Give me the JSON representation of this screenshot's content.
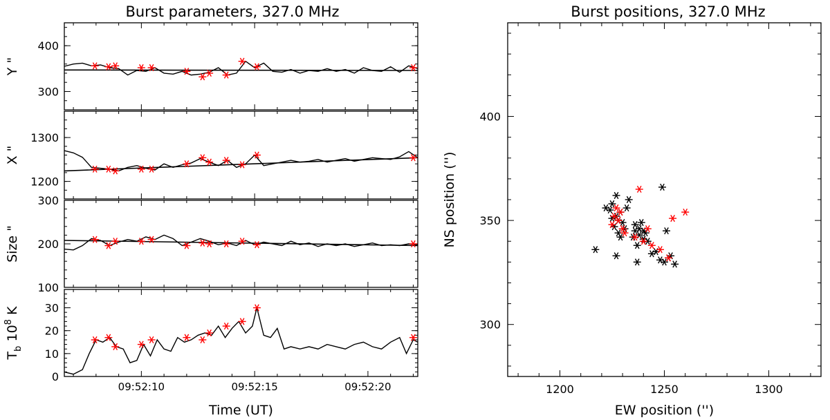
{
  "colors": {
    "axis": "#000000",
    "black_series": "#000000",
    "red_markers": "#ff0000"
  },
  "time_ticks": [
    "09:52:10",
    "09:52:15",
    "09:52:20"
  ],
  "chart_data": [
    {
      "type": "line",
      "panel": "Y",
      "title": "Burst parameters, 327.0 MHz",
      "ylabel": "Y \"",
      "xlabel": "",
      "xlim": [
        6.6,
        22.2
      ],
      "ylim": [
        260,
        450
      ],
      "yticks": [
        300,
        400
      ],
      "series": [
        {
          "role": "measured",
          "x": [
            6.6,
            7.0,
            7.4,
            7.8,
            8.2,
            8.6,
            9.0,
            9.4,
            9.8,
            10.2,
            10.6,
            11.0,
            11.4,
            11.8,
            12.2,
            12.6,
            13.0,
            13.4,
            13.8,
            14.2,
            14.6,
            15.0,
            15.4,
            15.8,
            16.2,
            16.6,
            17.0,
            17.4,
            17.8,
            18.2,
            18.6,
            19.0,
            19.4,
            19.8,
            20.2,
            20.6,
            21.0,
            21.4,
            21.8,
            22.2
          ],
          "y": [
            355,
            360,
            362,
            356,
            358,
            352,
            350,
            336,
            346,
            344,
            352,
            340,
            338,
            344,
            336,
            338,
            342,
            352,
            336,
            340,
            366,
            352,
            362,
            344,
            342,
            348,
            340,
            346,
            344,
            350,
            344,
            348,
            340,
            352,
            346,
            344,
            354,
            342,
            356,
            350
          ]
        },
        {
          "role": "fit",
          "x": [
            6.6,
            22.2
          ],
          "y": [
            347,
            346
          ]
        }
      ],
      "red_points": {
        "x": [
          7.95,
          8.55,
          8.85,
          10.0,
          10.45,
          12.0,
          12.7,
          13.0,
          13.75,
          14.45,
          15.1,
          22.0
        ],
        "y": [
          356,
          354,
          356,
          352,
          352,
          344,
          332,
          340,
          336,
          366,
          354,
          352
        ]
      }
    },
    {
      "type": "line",
      "panel": "X",
      "ylabel": "X \"",
      "xlim": [
        6.6,
        22.2
      ],
      "ylim": [
        1160,
        1360
      ],
      "yticks": [
        1200,
        1300
      ],
      "series": [
        {
          "role": "measured",
          "x": [
            6.6,
            7.0,
            7.4,
            7.8,
            8.2,
            8.6,
            9.0,
            9.4,
            9.8,
            10.2,
            10.6,
            11.0,
            11.4,
            11.8,
            12.2,
            12.6,
            13.0,
            13.4,
            13.8,
            14.2,
            14.6,
            15.0,
            15.4,
            15.8,
            16.2,
            16.6,
            17.0,
            17.4,
            17.8,
            18.2,
            18.6,
            19.0,
            19.4,
            19.8,
            20.2,
            20.6,
            21.0,
            21.4,
            21.8,
            22.2
          ],
          "y": [
            1270,
            1265,
            1255,
            1232,
            1230,
            1228,
            1224,
            1232,
            1236,
            1230,
            1226,
            1240,
            1232,
            1238,
            1242,
            1252,
            1244,
            1236,
            1248,
            1232,
            1240,
            1260,
            1236,
            1240,
            1244,
            1248,
            1244,
            1246,
            1250,
            1244,
            1248,
            1252,
            1246,
            1250,
            1254,
            1252,
            1250,
            1256,
            1268,
            1254
          ]
        },
        {
          "role": "fit",
          "x": [
            6.6,
            22.2
          ],
          "y": [
            1224,
            1254
          ]
        }
      ],
      "red_points": {
        "x": [
          7.95,
          8.55,
          8.85,
          10.0,
          10.45,
          12.0,
          12.7,
          13.0,
          13.75,
          14.45,
          15.1,
          22.0
        ],
        "y": [
          1228,
          1228,
          1224,
          1228,
          1228,
          1240,
          1254,
          1244,
          1248,
          1238,
          1260,
          1254
        ]
      }
    },
    {
      "type": "line",
      "panel": "Size",
      "ylabel": "Size \"",
      "xlim": [
        6.6,
        22.2
      ],
      "ylim": [
        100,
        300
      ],
      "yticks": [
        100,
        200,
        300
      ],
      "series": [
        {
          "role": "measured",
          "x": [
            6.6,
            7.0,
            7.4,
            7.8,
            8.2,
            8.6,
            9.0,
            9.4,
            9.8,
            10.2,
            10.6,
            11.0,
            11.4,
            11.8,
            12.2,
            12.6,
            13.0,
            13.4,
            13.8,
            14.2,
            14.6,
            15.0,
            15.4,
            15.8,
            16.2,
            16.6,
            17.0,
            17.4,
            17.8,
            18.2,
            18.6,
            19.0,
            19.4,
            19.8,
            20.2,
            20.6,
            21.0,
            21.4,
            21.8,
            22.2
          ],
          "y": [
            188,
            186,
            196,
            212,
            208,
            196,
            204,
            210,
            206,
            216,
            210,
            220,
            212,
            196,
            204,
            212,
            206,
            198,
            202,
            196,
            208,
            198,
            204,
            200,
            196,
            206,
            198,
            202,
            194,
            200,
            196,
            200,
            194,
            198,
            202,
            196,
            198,
            196,
            200,
            198
          ]
        },
        {
          "role": "fit",
          "x": [
            6.6,
            22.2
          ],
          "y": [
            208,
            196
          ]
        }
      ],
      "red_points": {
        "x": [
          7.95,
          8.55,
          8.85,
          10.0,
          10.45,
          12.0,
          12.7,
          13.0,
          13.75,
          14.45,
          15.1,
          22.0
        ],
        "y": [
          210,
          196,
          206,
          206,
          210,
          196,
          202,
          200,
          200,
          206,
          198,
          200
        ]
      }
    },
    {
      "type": "line",
      "panel": "Tb",
      "ylabel": "T_b 10^8 K",
      "xlabel": "Time (UT)",
      "xlim": [
        6.6,
        22.2
      ],
      "ylim": [
        0,
        38
      ],
      "yticks": [
        0,
        10,
        20,
        30
      ],
      "series": [
        {
          "role": "measured",
          "x": [
            6.6,
            7.0,
            7.4,
            7.7,
            8.0,
            8.3,
            8.6,
            8.9,
            9.2,
            9.5,
            9.8,
            10.1,
            10.4,
            10.7,
            11.0,
            11.3,
            11.6,
            11.9,
            12.2,
            12.5,
            12.8,
            13.1,
            13.4,
            13.7,
            14.0,
            14.3,
            14.6,
            14.9,
            15.1,
            15.4,
            15.7,
            16.0,
            16.3,
            16.6,
            17.0,
            17.4,
            17.8,
            18.2,
            18.6,
            19.0,
            19.4,
            19.8,
            20.2,
            20.6,
            21.0,
            21.4,
            21.7,
            22.0,
            22.2
          ],
          "y": [
            2,
            1,
            3,
            10,
            16,
            15,
            17,
            13,
            12,
            6,
            7,
            14,
            9,
            16,
            12,
            11,
            17,
            15,
            16,
            18,
            19,
            18,
            22,
            17,
            21,
            24,
            19,
            22,
            30,
            18,
            17,
            21,
            12,
            13,
            12,
            13,
            12,
            14,
            13,
            12,
            14,
            15,
            13,
            12,
            15,
            17,
            10,
            16,
            15
          ]
        }
      ],
      "red_points": {
        "x": [
          7.95,
          8.55,
          8.85,
          10.0,
          10.45,
          12.0,
          12.7,
          13.0,
          13.75,
          14.45,
          15.1,
          22.0
        ],
        "y": [
          16,
          17,
          13,
          14,
          16,
          17,
          16,
          19,
          22,
          24,
          30,
          17
        ]
      }
    },
    {
      "type": "scatter",
      "panel": "positions",
      "title": "Burst positions, 327.0 MHz",
      "xlabel": "EW position ('')",
      "ylabel": "NS position ('')",
      "xlim": [
        1175,
        1325
      ],
      "ylim": [
        275,
        445
      ],
      "xticks": [
        1200,
        1250,
        1300
      ],
      "yticks": [
        300,
        350,
        400
      ],
      "series": [
        {
          "name": "",
          "color": "black",
          "x": [
            1217,
            1222,
            1224,
            1225,
            1225,
            1226,
            1227,
            1227,
            1227,
            1228,
            1228,
            1229,
            1229,
            1230,
            1231,
            1232,
            1233,
            1235,
            1236,
            1236,
            1237,
            1237,
            1238,
            1238,
            1239,
            1240,
            1240,
            1241,
            1242,
            1244,
            1246,
            1248,
            1249,
            1250,
            1251,
            1252,
            1253,
            1255
          ],
          "y": [
            336,
            356,
            355,
            358,
            351,
            347,
            362,
            352,
            333,
            344,
            350,
            354,
            342,
            349,
            346,
            356,
            360,
            342,
            348,
            345,
            338,
            330,
            346,
            343,
            349,
            345,
            341,
            344,
            340,
            334,
            335,
            331,
            366,
            330,
            345,
            332,
            333,
            329
          ]
        },
        {
          "name": "",
          "color": "red",
          "x": [
            1225,
            1226,
            1227,
            1228,
            1229,
            1230,
            1231,
            1236,
            1238,
            1240,
            1242,
            1244,
            1248,
            1252,
            1254,
            1260
          ],
          "y": [
            348,
            352,
            356,
            350,
            354,
            346,
            344,
            342,
            365,
            340,
            346,
            338,
            336,
            332,
            351,
            354
          ]
        }
      ]
    }
  ]
}
